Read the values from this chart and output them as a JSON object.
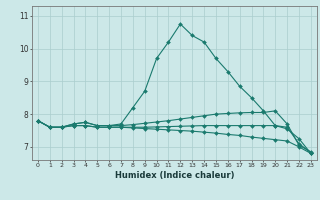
{
  "xlabel": "Humidex (Indice chaleur)",
  "background_color": "#cce8e8",
  "grid_color": "#aacece",
  "line_color": "#1a7a6e",
  "xlim": [
    -0.5,
    23.5
  ],
  "ylim": [
    6.6,
    11.3
  ],
  "yticks": [
    7,
    8,
    9,
    10,
    11
  ],
  "xticks": [
    0,
    1,
    2,
    3,
    4,
    5,
    6,
    7,
    8,
    9,
    10,
    11,
    12,
    13,
    14,
    15,
    16,
    17,
    18,
    19,
    20,
    21,
    22,
    23
  ],
  "lines": [
    [
      7.8,
      7.6,
      7.6,
      7.7,
      7.75,
      7.65,
      7.65,
      7.7,
      8.2,
      8.7,
      9.7,
      10.2,
      10.75,
      10.4,
      10.2,
      9.7,
      9.3,
      8.85,
      8.5,
      8.1,
      7.65,
      7.55,
      7.25,
      6.8
    ],
    [
      7.8,
      7.6,
      7.6,
      7.7,
      7.75,
      7.65,
      7.65,
      7.65,
      7.68,
      7.72,
      7.76,
      7.8,
      7.85,
      7.9,
      7.95,
      8.0,
      8.02,
      8.04,
      8.05,
      8.05,
      8.1,
      7.7,
      7.05,
      6.85
    ],
    [
      7.8,
      7.6,
      7.6,
      7.65,
      7.65,
      7.6,
      7.6,
      7.6,
      7.58,
      7.56,
      7.54,
      7.52,
      7.5,
      7.48,
      7.45,
      7.42,
      7.38,
      7.35,
      7.3,
      7.26,
      7.22,
      7.18,
      7.0,
      6.8
    ],
    [
      7.8,
      7.6,
      7.6,
      7.65,
      7.65,
      7.6,
      7.6,
      7.6,
      7.6,
      7.6,
      7.61,
      7.62,
      7.63,
      7.64,
      7.65,
      7.65,
      7.65,
      7.65,
      7.65,
      7.65,
      7.65,
      7.6,
      7.1,
      6.82
    ]
  ]
}
